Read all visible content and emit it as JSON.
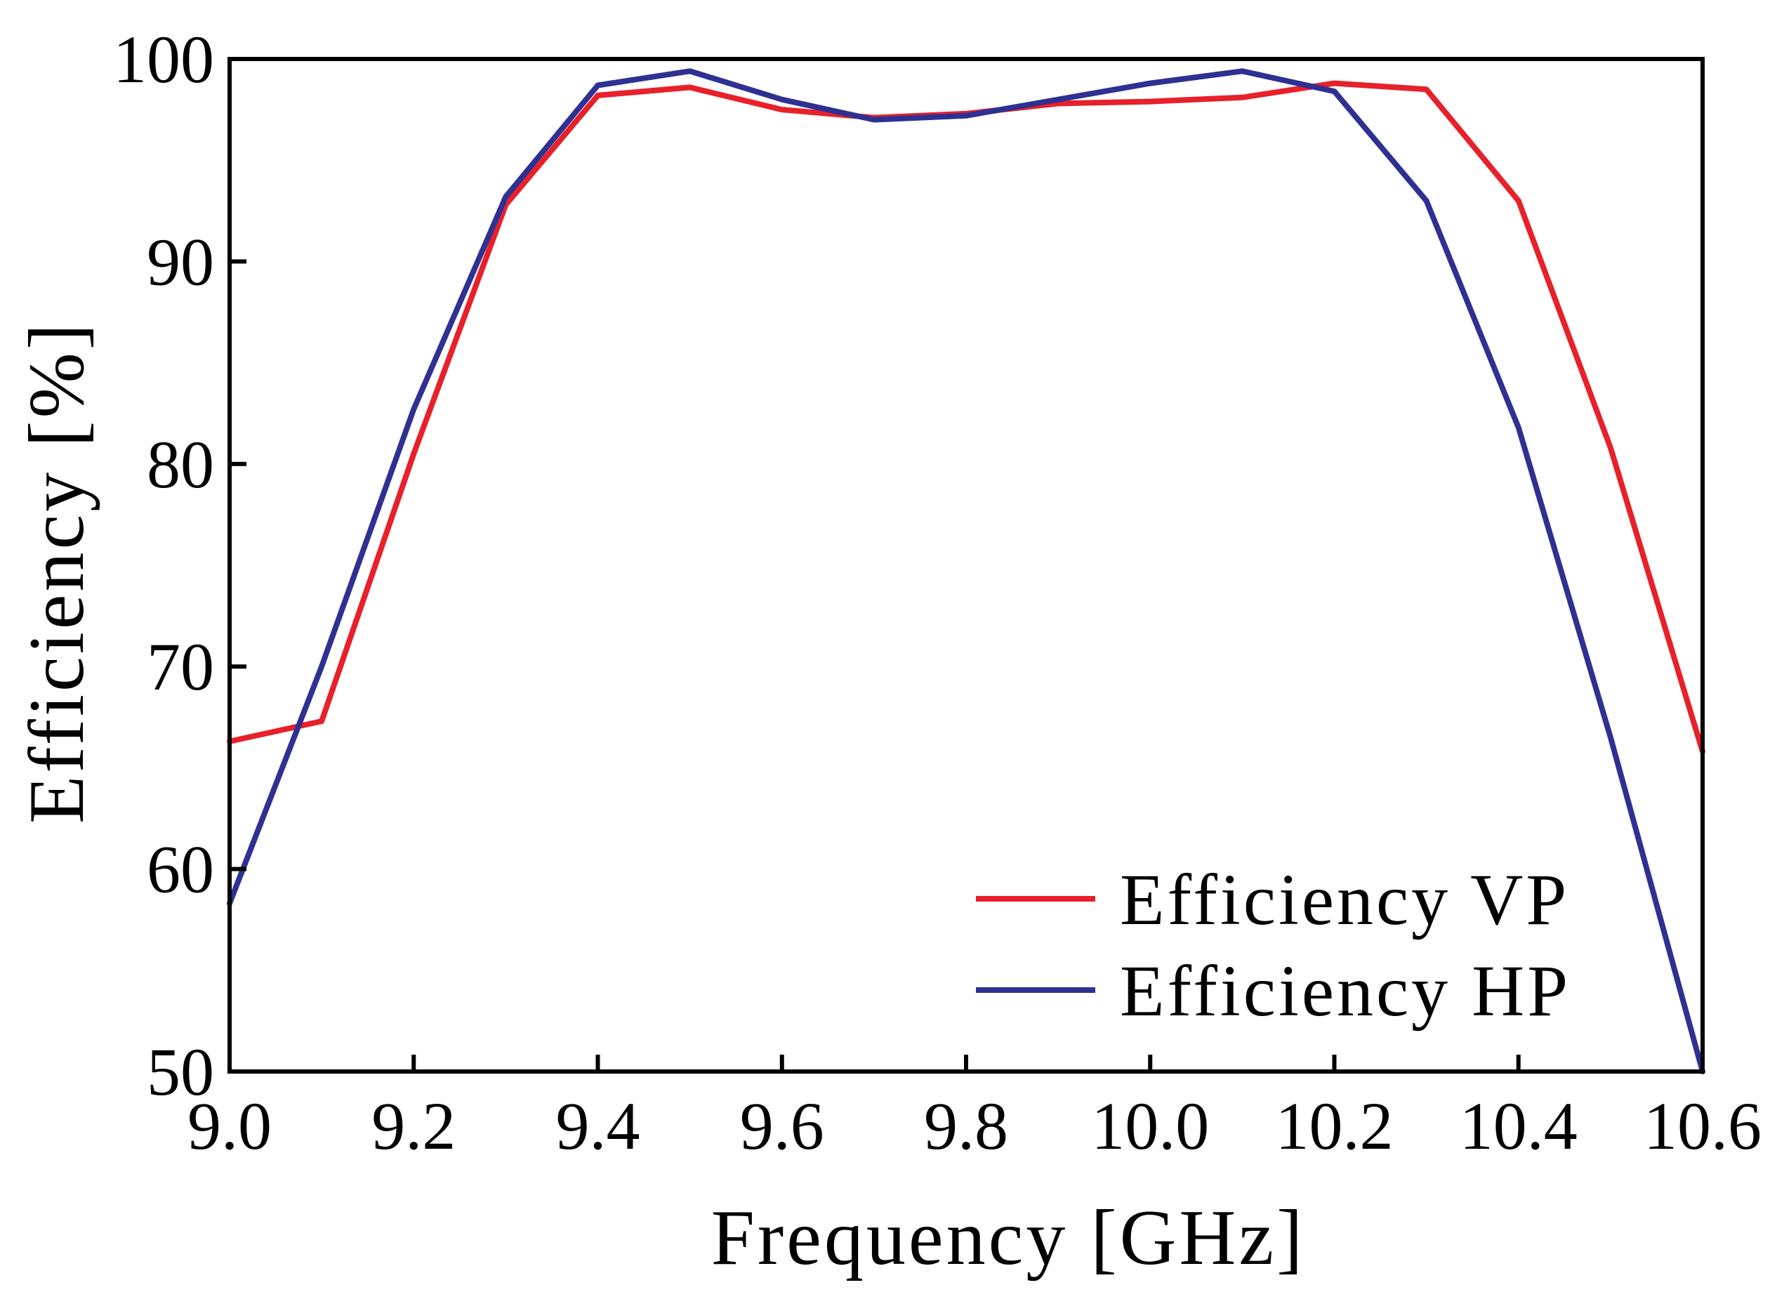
{
  "chart_data": {
    "type": "line",
    "title": "",
    "xlabel": "Frequency [GHz]",
    "ylabel": "Efficiency [%]",
    "xlim": [
      9.0,
      10.6
    ],
    "ylim": [
      50,
      100
    ],
    "xticks": [
      9.0,
      9.2,
      9.4,
      9.6,
      9.8,
      10.0,
      10.2,
      10.4,
      10.6
    ],
    "xtick_labels": [
      "9.0",
      "9.2",
      "9.4",
      "9.6",
      "9.8",
      "10.0",
      "10.2",
      "10.4",
      "10.6"
    ],
    "yticks": [
      50,
      60,
      70,
      80,
      90,
      100
    ],
    "ytick_labels": [
      "50",
      "60",
      "70",
      "80",
      "90",
      "100"
    ],
    "grid": false,
    "legend_position": "bottom-right",
    "x": [
      9.0,
      9.1,
      9.2,
      9.3,
      9.4,
      9.5,
      9.6,
      9.7,
      9.8,
      9.9,
      10.0,
      10.1,
      10.2,
      10.3,
      10.4,
      10.5,
      10.6
    ],
    "series": [
      {
        "name": "Efficiency VP",
        "color": "#e8202a",
        "values": [
          66.3,
          67.3,
          80.5,
          92.8,
          98.2,
          98.6,
          97.5,
          97.1,
          97.3,
          97.8,
          97.9,
          98.1,
          98.8,
          98.5,
          93.0,
          80.8,
          65.8
        ]
      },
      {
        "name": "Efficiency HP",
        "color": "#2e3192",
        "values": [
          58.3,
          70.0,
          82.7,
          93.2,
          98.7,
          99.4,
          98.0,
          97.0,
          97.2,
          98.0,
          98.8,
          99.4,
          98.4,
          93.0,
          81.8,
          66.5,
          50.0
        ]
      }
    ]
  }
}
